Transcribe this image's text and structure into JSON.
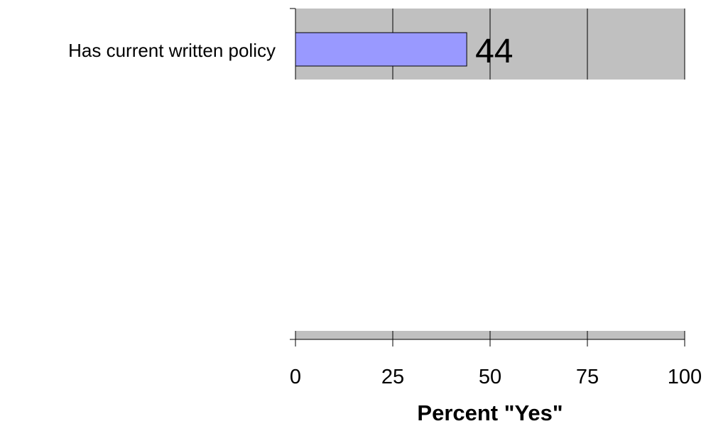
{
  "chart_data": {
    "type": "bar",
    "orientation": "horizontal",
    "categories": [
      "Has current written policy"
    ],
    "values": [
      44
    ],
    "xlabel": "Percent \"Yes\"",
    "ylabel": "",
    "xlim": [
      0,
      100
    ],
    "ticks": [
      "0",
      "25",
      "50",
      "75",
      "100"
    ],
    "grid": true,
    "bar_color": "#9999ff",
    "plot_background": "#c0c0c0",
    "data_labels": [
      "44"
    ]
  }
}
